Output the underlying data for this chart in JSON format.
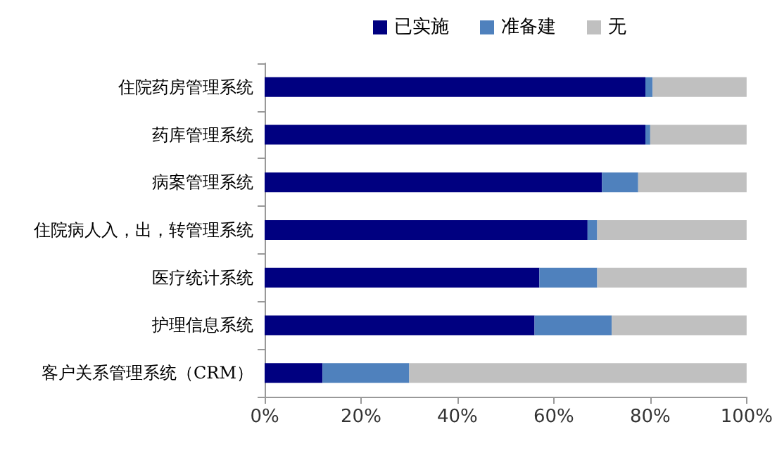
{
  "chart_data": {
    "type": "bar",
    "orientation": "horizontal",
    "stacked": true,
    "categories": [
      "住院药房管理系统",
      "药库管理系统",
      "病案管理系统",
      "住院病人入，出，转管理系统",
      "医疗统计系统",
      "护理信息系统",
      "客户关系管理系统（CRM）"
    ],
    "series": [
      {
        "name": "已实施",
        "color": "#000080",
        "values": [
          79,
          79,
          70,
          67,
          57,
          56,
          12
        ]
      },
      {
        "name": "准备建",
        "color": "#4f81bd",
        "values": [
          1.5,
          1,
          7.5,
          2,
          12,
          16,
          18
        ]
      },
      {
        "name": "无",
        "color": "#c0c0c0",
        "values": [
          19.5,
          20,
          22.5,
          31,
          31,
          28,
          70
        ]
      }
    ],
    "xlim": [
      0,
      100
    ],
    "xticks": [
      {
        "value": 0,
        "label": "0%"
      },
      {
        "value": 20,
        "label": "20%"
      },
      {
        "value": 40,
        "label": "40%"
      },
      {
        "value": 60,
        "label": "60%"
      },
      {
        "value": 80,
        "label": "80%"
      },
      {
        "value": 100,
        "label": "100%"
      }
    ],
    "grid": false,
    "legend": "top"
  }
}
